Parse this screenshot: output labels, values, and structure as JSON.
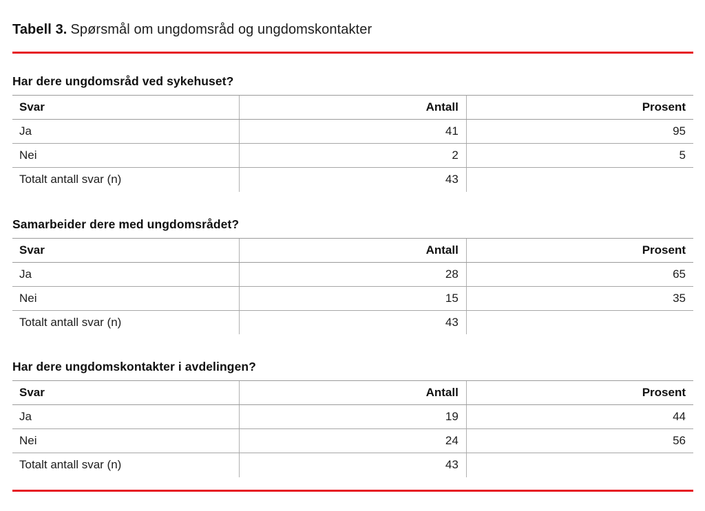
{
  "title": {
    "label": "Tabell 3.",
    "text": "Spørsmål om ungdomsråd og ungdomskontakter"
  },
  "colors": {
    "accent_red": "#e61923",
    "border_gray": "#9a9a9a",
    "text": "#1d1d1d"
  },
  "columns": [
    "Svar",
    "Antall",
    "Prosent"
  ],
  "tables": [
    {
      "heading": "Har dere ungdomsråd ved sykehuset?",
      "rows": [
        [
          "Ja",
          "41",
          "95"
        ],
        [
          "Nei",
          "2",
          "5"
        ],
        [
          "Totalt antall svar (n)",
          "43",
          ""
        ]
      ]
    },
    {
      "heading": "Samarbeider dere med ungdomsrådet?",
      "rows": [
        [
          "Ja",
          "28",
          "65"
        ],
        [
          "Nei",
          "15",
          "35"
        ],
        [
          "Totalt antall svar (n)",
          "43",
          ""
        ]
      ]
    },
    {
      "heading": "Har dere ungdomskontakter i avdelingen?",
      "rows": [
        [
          "Ja",
          "19",
          "44"
        ],
        [
          "Nei",
          "24",
          "56"
        ],
        [
          "Totalt antall svar (n)",
          "43",
          ""
        ]
      ]
    }
  ]
}
